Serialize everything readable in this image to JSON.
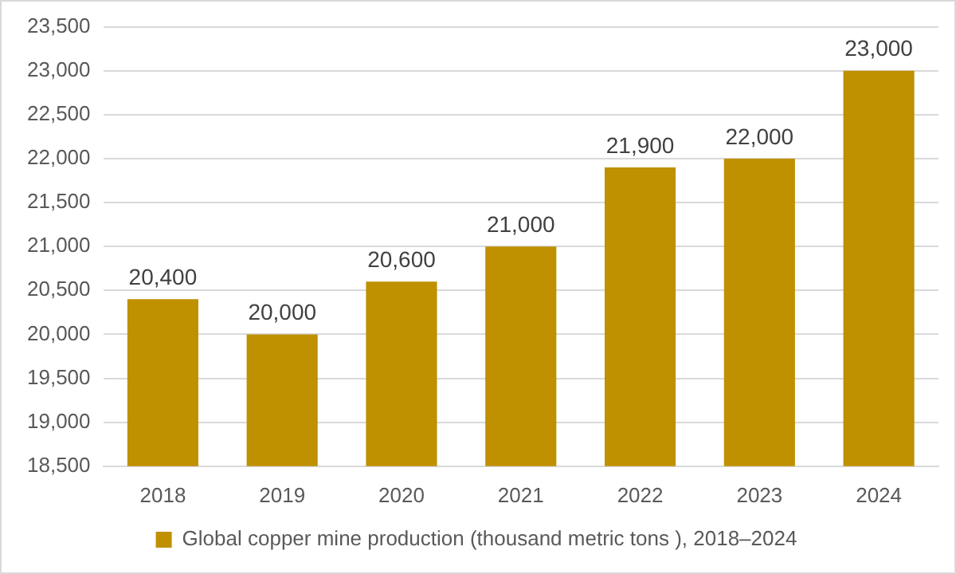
{
  "chart_data": {
    "type": "bar",
    "categories": [
      "2018",
      "2019",
      "2020",
      "2021",
      "2022",
      "2023",
      "2024"
    ],
    "series": [
      {
        "name": "Global copper mine production (thousand metric tons ), 2018–2024",
        "color": "#bf9000",
        "values": [
          20400,
          20000,
          20600,
          21000,
          21900,
          22000,
          23000
        ],
        "value_labels": [
          "20,400",
          "20,000",
          "20,600",
          "21,000",
          "21,900",
          "22,000",
          "23,000"
        ]
      }
    ],
    "ylim": [
      18500,
      23500
    ],
    "yticks": [
      {
        "value": 18500,
        "label": "18,500"
      },
      {
        "value": 19000,
        "label": "19,000"
      },
      {
        "value": 19500,
        "label": "19,500"
      },
      {
        "value": 20000,
        "label": "20,000"
      },
      {
        "value": 20500,
        "label": "20,500"
      },
      {
        "value": 21000,
        "label": "21,000"
      },
      {
        "value": 21500,
        "label": "21,500"
      },
      {
        "value": 22000,
        "label": "22,000"
      },
      {
        "value": 22500,
        "label": "22,500"
      },
      {
        "value": 23000,
        "label": "23,000"
      },
      {
        "value": 23500,
        "label": "23,500"
      }
    ],
    "grid": "y",
    "legend": "bottom"
  }
}
